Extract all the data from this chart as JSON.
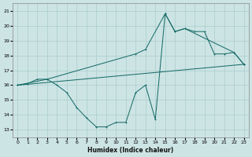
{
  "xlabel": "Humidex (Indice chaleur)",
  "background_color": "#cde4e4",
  "grid_color": "#aacccc",
  "line_color": "#1a6e6a",
  "xlim": [
    -0.5,
    23.5
  ],
  "ylim": [
    12.5,
    21.5
  ],
  "xticks": [
    0,
    1,
    2,
    3,
    4,
    5,
    6,
    7,
    8,
    9,
    10,
    11,
    12,
    13,
    14,
    15,
    16,
    17,
    18,
    19,
    20,
    21,
    22,
    23
  ],
  "yticks": [
    13,
    14,
    15,
    16,
    17,
    18,
    19,
    20,
    21
  ],
  "line1_x": [
    0,
    1,
    2,
    3,
    4,
    5,
    6,
    7,
    8,
    9,
    10,
    11,
    12,
    13,
    14,
    15,
    16,
    17,
    18,
    19,
    20,
    21,
    22,
    23
  ],
  "line1_y": [
    16.0,
    16.1,
    16.4,
    16.4,
    16.0,
    15.5,
    14.5,
    13.8,
    13.2,
    13.2,
    13.5,
    13.5,
    15.5,
    16.0,
    13.7,
    20.8,
    19.6,
    19.8,
    19.6,
    19.6,
    18.1,
    18.1,
    18.2,
    17.4
  ],
  "line2_x": [
    0,
    3,
    12,
    13,
    15,
    16,
    17,
    22,
    23
  ],
  "line2_y": [
    16.0,
    16.4,
    18.1,
    18.4,
    20.8,
    19.6,
    19.8,
    18.2,
    17.4
  ],
  "line3_x": [
    0,
    23
  ],
  "line3_y": [
    16.0,
    17.4
  ]
}
